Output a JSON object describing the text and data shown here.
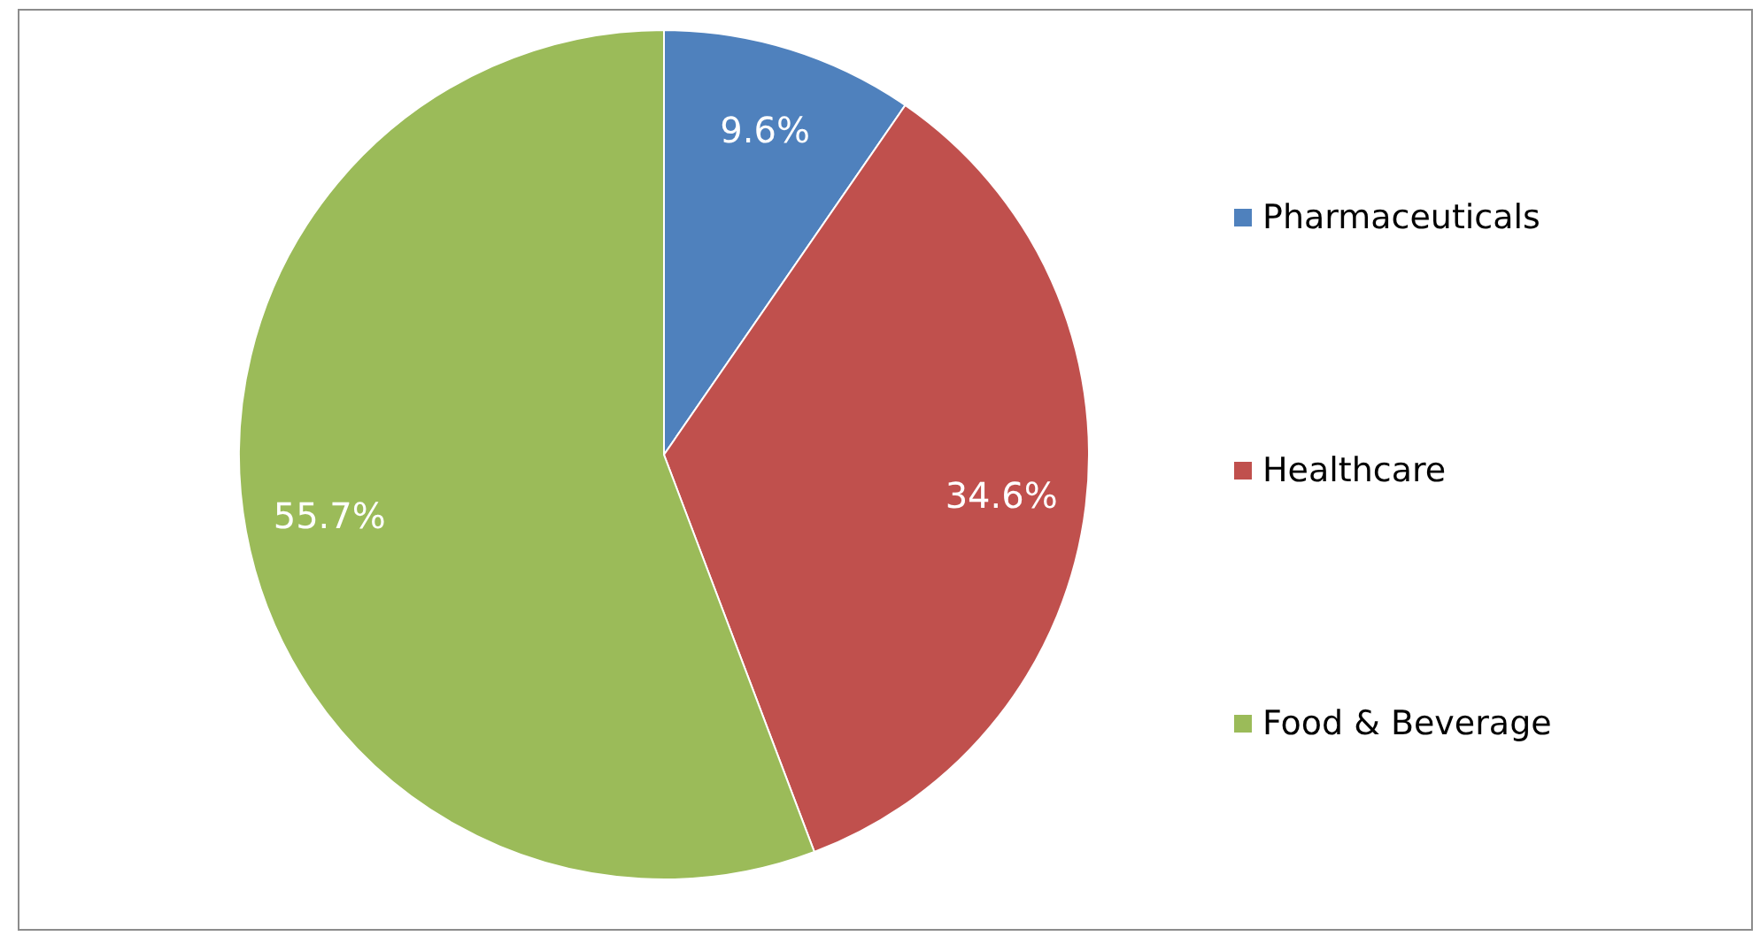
{
  "chart_data": {
    "type": "pie",
    "categories": [
      "Pharmaceuticals",
      "Healthcare",
      "Food & Beverage"
    ],
    "values": [
      9.6,
      34.6,
      55.7
    ],
    "colors": [
      "#4f81bd",
      "#c0504d",
      "#9bbb59"
    ],
    "value_labels": [
      "9.6%",
      "34.6%",
      "55.7%"
    ],
    "legend": "right"
  }
}
